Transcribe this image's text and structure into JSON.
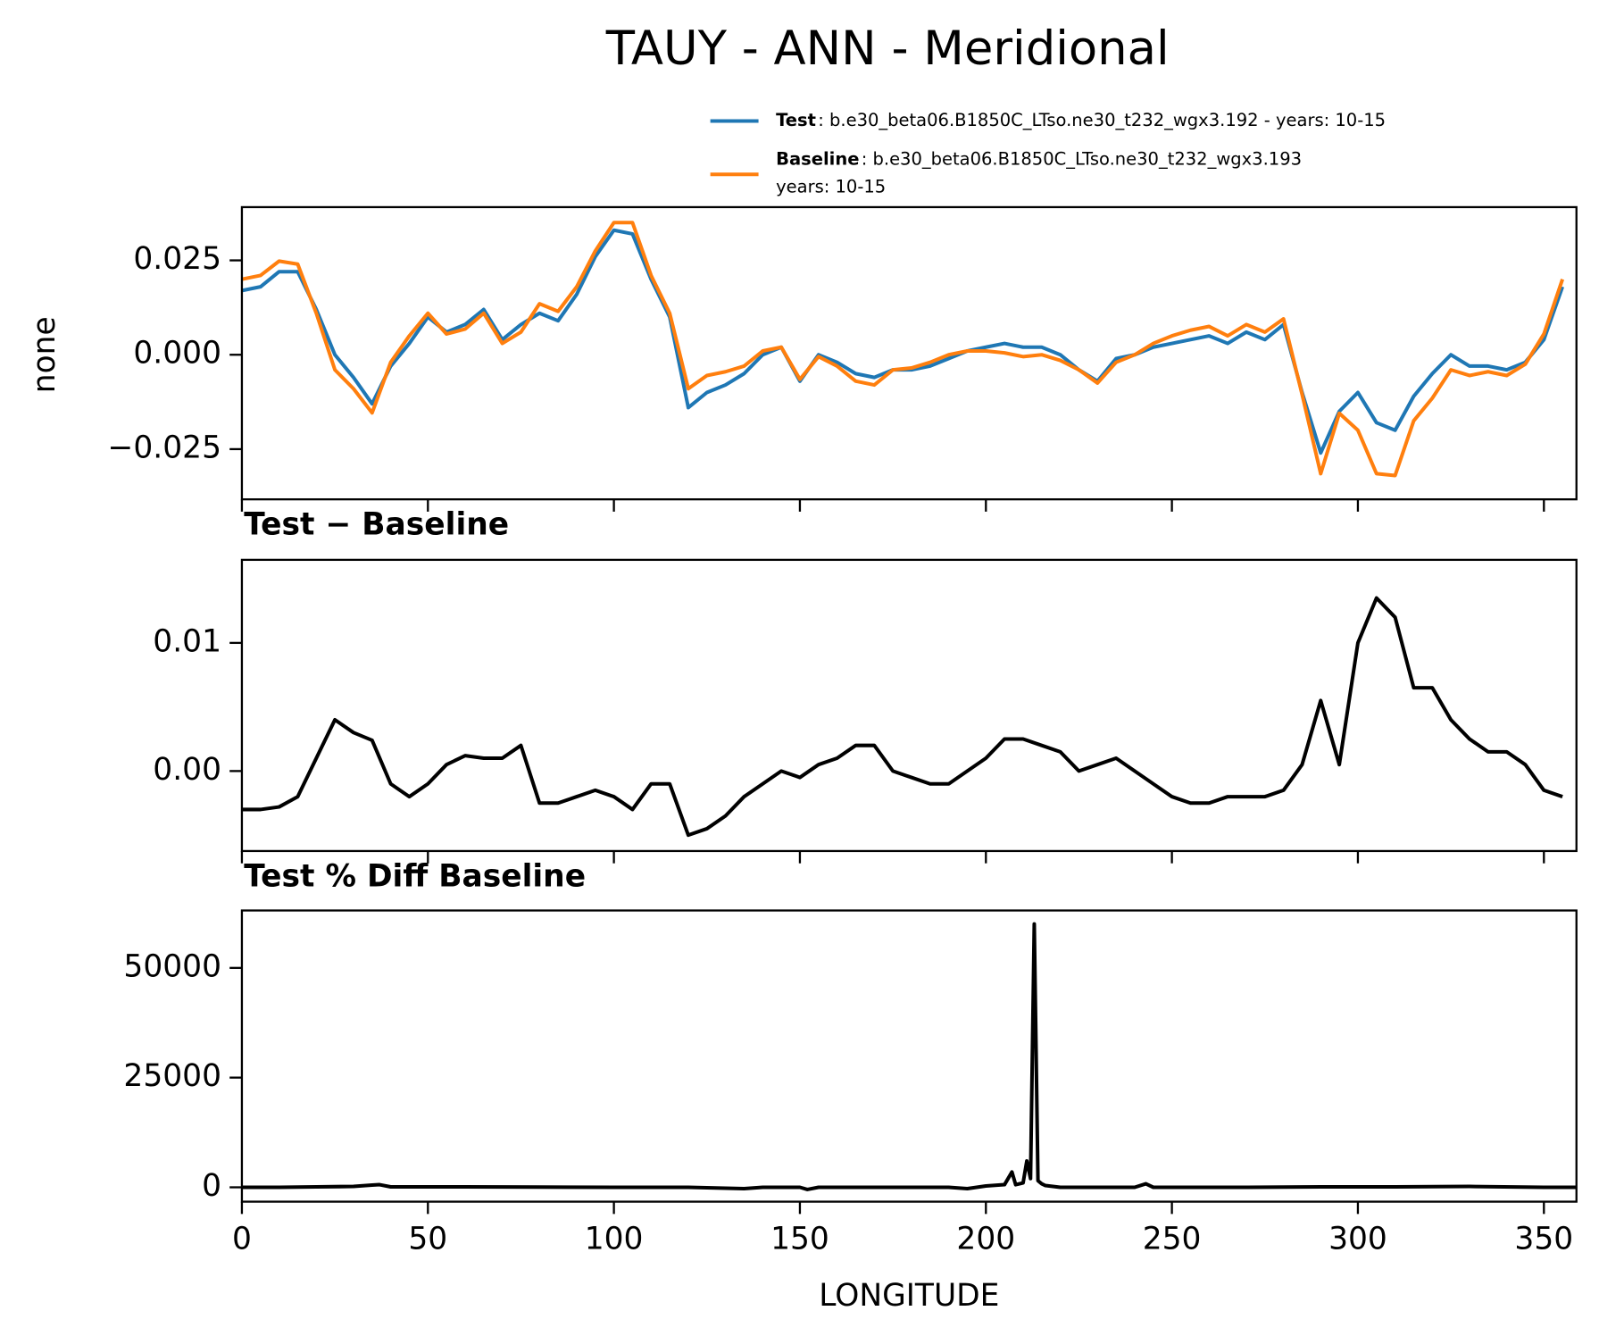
{
  "chart_data": [
    {
      "type": "line",
      "title": "TAUY - ANN - Meridional",
      "ylabel": "none",
      "x": [
        0,
        5,
        10,
        15,
        20,
        25,
        30,
        35,
        40,
        45,
        50,
        55,
        60,
        65,
        70,
        75,
        80,
        85,
        90,
        95,
        100,
        105,
        110,
        115,
        120,
        125,
        130,
        135,
        140,
        145,
        150,
        155,
        160,
        165,
        170,
        175,
        180,
        185,
        190,
        195,
        200,
        205,
        210,
        215,
        220,
        225,
        230,
        235,
        240,
        245,
        250,
        255,
        260,
        265,
        270,
        275,
        280,
        285,
        290,
        295,
        300,
        305,
        310,
        315,
        320,
        325,
        330,
        335,
        340,
        345,
        350,
        355
      ],
      "series": [
        {
          "name": "Test",
          "description": ": b.e30_beta06.B1850C_LTso.ne30_t232_wgx3.192 - years: 10-15",
          "color": "#1f77b4",
          "values": [
            0.017,
            0.018,
            0.022,
            0.022,
            0.012,
            0.0,
            -0.006,
            -0.013,
            -0.003,
            0.003,
            0.01,
            0.006,
            0.008,
            0.012,
            0.004,
            0.008,
            0.011,
            0.009,
            0.016,
            0.026,
            0.033,
            0.032,
            0.02,
            0.01,
            -0.014,
            -0.01,
            -0.008,
            -0.005,
            0.0,
            0.002,
            -0.007,
            0.0,
            -0.002,
            -0.005,
            -0.006,
            -0.004,
            -0.004,
            -0.003,
            -0.001,
            0.001,
            0.002,
            0.003,
            0.002,
            0.002,
            0.0,
            -0.004,
            -0.007,
            -0.001,
            0.0,
            0.002,
            0.003,
            0.004,
            0.005,
            0.003,
            0.006,
            0.004,
            0.008,
            -0.01,
            -0.026,
            -0.015,
            -0.01,
            -0.018,
            -0.02,
            -0.011,
            -0.005,
            0.0,
            -0.003,
            -0.003,
            -0.004,
            -0.002,
            0.004,
            0.018
          ]
        },
        {
          "name": "Baseline",
          "description": ": b.e30_beta06.B1850C_LTso.ne30_t232_wgx3.193",
          "description2": "years: 10-15",
          "color": "#ff7f0e",
          "values": [
            0.02,
            0.021,
            0.0248,
            0.024,
            0.011,
            -0.004,
            -0.009,
            -0.0154,
            -0.002,
            0.005,
            0.011,
            0.0055,
            0.0068,
            0.011,
            0.003,
            0.006,
            0.0135,
            0.0115,
            0.018,
            0.0275,
            0.035,
            0.035,
            0.021,
            0.011,
            -0.009,
            -0.0055,
            -0.0045,
            -0.003,
            0.001,
            0.002,
            -0.0065,
            -0.0005,
            -0.003,
            -0.007,
            -0.008,
            -0.004,
            -0.0035,
            -0.002,
            0.0,
            0.001,
            0.001,
            0.0005,
            -0.0005,
            0.0,
            -0.0015,
            -0.004,
            -0.0075,
            -0.002,
            0.0,
            0.003,
            0.005,
            0.0065,
            0.0075,
            0.005,
            0.008,
            0.006,
            0.0095,
            -0.0105,
            -0.0315,
            -0.0155,
            -0.02,
            -0.0315,
            -0.032,
            -0.0175,
            -0.0115,
            -0.004,
            -0.0055,
            -0.0045,
            -0.0055,
            -0.0025,
            0.0055,
            0.02
          ]
        }
      ],
      "ylim": [
        -0.0383,
        0.0391
      ],
      "yticks": [
        {
          "value": -0.025,
          "label": "−0.025"
        },
        {
          "value": 0,
          "label": "0.000"
        },
        {
          "value": 0.025,
          "label": "0.025"
        }
      ]
    },
    {
      "type": "line",
      "title": "Test − Baseline",
      "color": "#000000",
      "x": [
        0,
        5,
        10,
        15,
        20,
        25,
        30,
        35,
        40,
        45,
        50,
        55,
        60,
        65,
        70,
        75,
        80,
        85,
        90,
        95,
        100,
        105,
        110,
        115,
        120,
        125,
        130,
        135,
        140,
        145,
        150,
        155,
        160,
        165,
        170,
        175,
        180,
        185,
        190,
        195,
        200,
        205,
        210,
        215,
        220,
        225,
        230,
        235,
        240,
        245,
        250,
        255,
        260,
        265,
        270,
        275,
        280,
        285,
        290,
        295,
        300,
        305,
        310,
        315,
        320,
        325,
        330,
        335,
        340,
        345,
        350,
        355
      ],
      "values": [
        -0.003,
        -0.003,
        -0.0028,
        -0.002,
        0.001,
        0.004,
        0.003,
        0.0024,
        -0.001,
        -0.002,
        -0.001,
        0.0005,
        0.0012,
        0.001,
        0.001,
        0.002,
        -0.0025,
        -0.0025,
        -0.002,
        -0.0015,
        -0.002,
        -0.003,
        -0.001,
        -0.001,
        -0.005,
        -0.0045,
        -0.0035,
        -0.002,
        -0.001,
        0.0,
        -0.0005,
        0.0005,
        0.001,
        0.002,
        0.002,
        0.0,
        -0.0005,
        -0.001,
        -0.001,
        0.0,
        0.001,
        0.0025,
        0.0025,
        0.002,
        0.0015,
        0.0,
        0.0005,
        0.001,
        0.0,
        -0.001,
        -0.002,
        -0.0025,
        -0.0025,
        -0.002,
        -0.002,
        -0.002,
        -0.0015,
        0.0005,
        0.0055,
        0.0005,
        0.01,
        0.0135,
        0.012,
        0.0065,
        0.0065,
        0.004,
        0.0025,
        0.0015,
        0.0015,
        0.0005,
        -0.0015,
        -0.002
      ],
      "ylim": [
        -0.00624,
        0.01648
      ],
      "yticks": [
        {
          "value": 0,
          "label": "0.00"
        },
        0.01
      ]
    },
    {
      "type": "line",
      "title": "Test % Diff Baseline",
      "xlabel": "LONGITUDE",
      "color": "#000000",
      "x": [
        0,
        10,
        20,
        30,
        35,
        37,
        40,
        60,
        80,
        100,
        120,
        135,
        140,
        150,
        152,
        155,
        170,
        190,
        195,
        200,
        205,
        207,
        208,
        210,
        211,
        212,
        213,
        214,
        215,
        216,
        220,
        230,
        240,
        243,
        245,
        250,
        270,
        290,
        310,
        330,
        350,
        358.75
      ],
      "values": [
        0,
        0,
        100,
        200,
        500,
        600,
        100,
        100,
        50,
        0,
        0,
        -300,
        0,
        0,
        -500,
        0,
        0,
        0,
        -300,
        300,
        600,
        3500,
        600,
        1000,
        6000,
        2000,
        60000,
        1500,
        800,
        400,
        0,
        0,
        0,
        800,
        0,
        0,
        0,
        100,
        100,
        200,
        0,
        0
      ],
      "ylim": [
        -3271,
        63084
      ],
      "yticks": [
        0,
        25000,
        50000
      ],
      "xlim": [
        0,
        358.75
      ],
      "xticks": [
        0,
        50,
        100,
        150,
        200,
        250,
        300,
        350
      ]
    }
  ]
}
